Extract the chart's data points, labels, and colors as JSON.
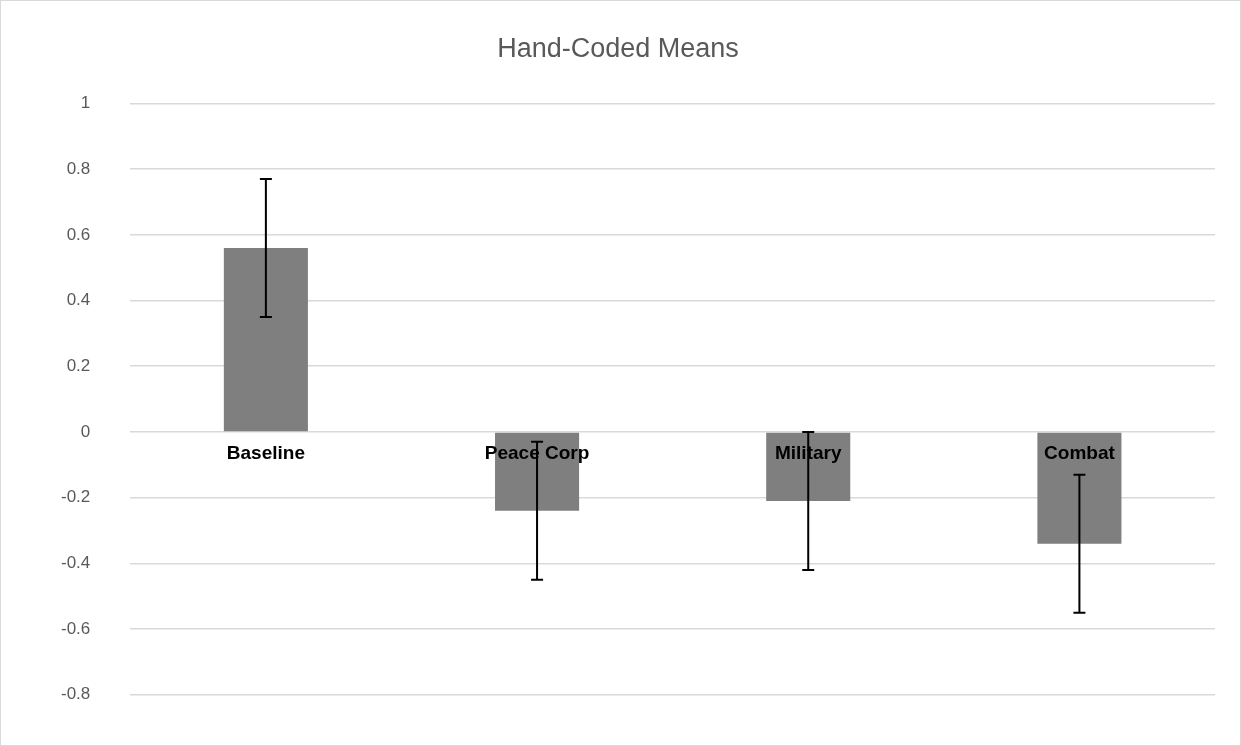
{
  "chart_data": {
    "type": "bar",
    "title": "Hand-Coded Means",
    "categories": [
      "Baseline",
      "Peace Corp",
      "Military",
      "Combat"
    ],
    "values": [
      0.56,
      -0.24,
      -0.21,
      -0.34
    ],
    "errors": [
      0.21,
      0.21,
      0.21,
      0.21
    ],
    "color": "#7f7f7f",
    "ylim": [
      -0.8,
      1
    ],
    "yticks": [
      -0.8,
      -0.6,
      -0.4,
      -0.2,
      0,
      0.2,
      0.4,
      0.6,
      0.8,
      1
    ],
    "grid": "y",
    "legend": false
  }
}
